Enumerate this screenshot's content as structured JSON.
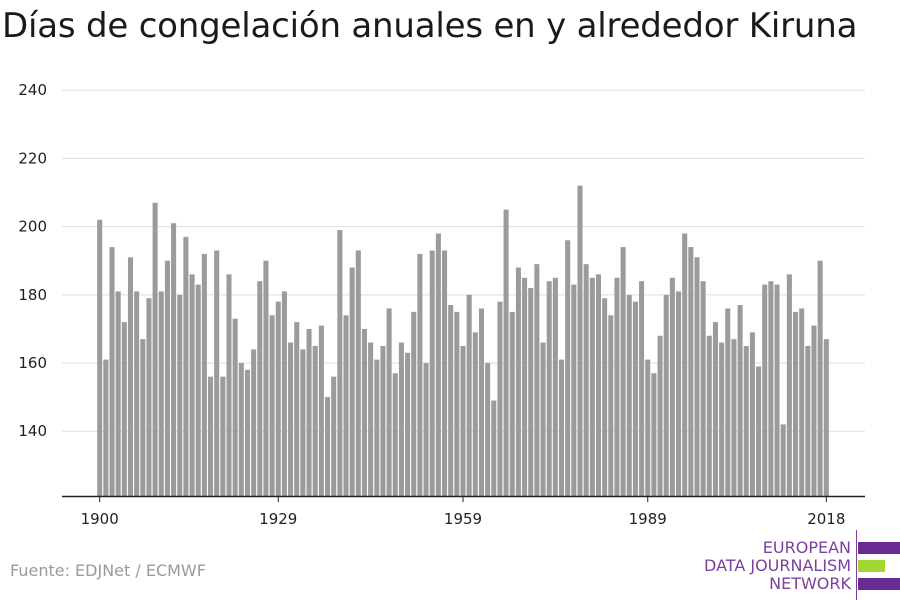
{
  "chart_data": {
    "type": "bar",
    "title": "Días de congelación anuales en y alrededor Kiruna",
    "xlabel": "",
    "ylabel": "",
    "x": [
      1900,
      1901,
      1902,
      1903,
      1904,
      1905,
      1906,
      1907,
      1908,
      1909,
      1910,
      1911,
      1912,
      1913,
      1914,
      1915,
      1916,
      1917,
      1918,
      1919,
      1920,
      1921,
      1922,
      1923,
      1924,
      1925,
      1926,
      1927,
      1928,
      1929,
      1930,
      1931,
      1932,
      1933,
      1934,
      1935,
      1936,
      1937,
      1938,
      1939,
      1940,
      1941,
      1942,
      1943,
      1944,
      1945,
      1946,
      1947,
      1948,
      1949,
      1950,
      1951,
      1952,
      1953,
      1954,
      1955,
      1956,
      1957,
      1958,
      1959,
      1960,
      1961,
      1962,
      1963,
      1964,
      1965,
      1966,
      1967,
      1968,
      1969,
      1970,
      1971,
      1972,
      1973,
      1974,
      1975,
      1976,
      1977,
      1978,
      1979,
      1980,
      1981,
      1982,
      1983,
      1984,
      1985,
      1986,
      1987,
      1988,
      1989,
      1990,
      1991,
      1992,
      1993,
      1994,
      1995,
      1996,
      1997,
      1998,
      1999,
      2000,
      2001,
      2002,
      2003,
      2004,
      2005,
      2006,
      2007,
      2008,
      2009,
      2010,
      2011,
      2012,
      2013,
      2014,
      2015,
      2016,
      2017,
      2018
    ],
    "values": [
      202,
      161,
      194,
      181,
      172,
      191,
      181,
      167,
      179,
      207,
      181,
      190,
      201,
      180,
      197,
      186,
      183,
      192,
      156,
      193,
      156,
      186,
      173,
      160,
      158,
      164,
      184,
      190,
      174,
      178,
      181,
      166,
      172,
      164,
      170,
      165,
      171,
      150,
      156,
      199,
      174,
      188,
      193,
      170,
      166,
      161,
      165,
      176,
      157,
      166,
      163,
      175,
      192,
      160,
      193,
      198,
      193,
      177,
      175,
      165,
      180,
      169,
      176,
      160,
      149,
      178,
      205,
      175,
      188,
      185,
      182,
      189,
      166,
      184,
      185,
      161,
      196,
      183,
      212,
      189,
      185,
      186,
      179,
      174,
      185,
      194,
      180,
      178,
      184,
      161,
      157,
      168,
      180,
      185,
      181,
      198,
      194,
      191,
      184,
      168,
      172,
      166,
      176,
      167,
      177,
      165,
      169,
      159,
      183,
      184,
      183,
      142,
      186,
      175,
      176,
      165,
      171,
      190,
      167
    ],
    "x_ticks": [
      1900,
      1929,
      1959,
      1989,
      2018
    ],
    "y_ticks": [
      140,
      160,
      180,
      200,
      220,
      240
    ],
    "ylim": [
      121,
      243
    ],
    "xlim": [
      1899.4,
      2018.6
    ],
    "grid": true,
    "colors": {
      "bar": "#9b9b9b",
      "grid": "#dedede",
      "axis": "#222222"
    }
  },
  "footer": {
    "source": "Fuente: EDJNet / ECMWF"
  },
  "logo": {
    "line1": "EUROPEAN",
    "line2": "DATA JOURNALISM",
    "line3": "NETWORK",
    "colors": {
      "purple": "#6a2c91",
      "green": "#a3d631"
    }
  }
}
